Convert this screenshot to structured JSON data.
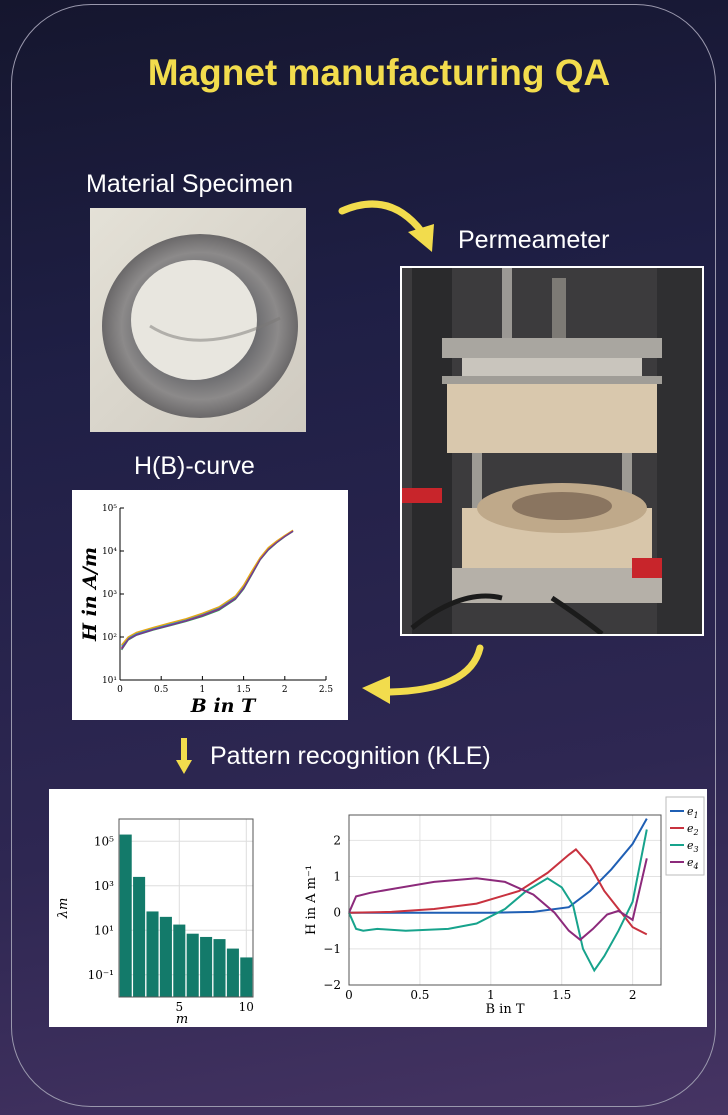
{
  "title": "Magnet manufacturing QA",
  "labels": {
    "specimen": "Material Specimen",
    "permeameter": "Permeameter",
    "hb_curve": "H(B)-curve",
    "pattern": "Pattern recognition (KLE)"
  },
  "colors": {
    "title": "#f2dc4d",
    "arrow": "#f2dc4d",
    "bar": "#137a6a"
  },
  "chart_data": [
    {
      "type": "line",
      "xlabel": "B in T",
      "ylabel": "H in A/m",
      "yscale": "log",
      "xlim": [
        0,
        2.5
      ],
      "ylim": [
        10,
        100000
      ],
      "xticks": [
        "0",
        "0.5",
        "1",
        "1.5",
        "2",
        "2.5"
      ],
      "yticks": [
        "10¹",
        "10²",
        "10³",
        "10⁴",
        "10⁵"
      ],
      "x": [
        0.02,
        0.1,
        0.2,
        0.4,
        0.6,
        0.8,
        1.0,
        1.2,
        1.4,
        1.5,
        1.6,
        1.7,
        1.8,
        1.9,
        2.0,
        2.1
      ],
      "series": [
        {
          "values": [
            55,
            90,
            115,
            150,
            190,
            240,
            320,
            450,
            800,
            1400,
            3000,
            6500,
            11000,
            16000,
            22000,
            29000
          ]
        },
        {
          "values": [
            60,
            95,
            120,
            158,
            198,
            255,
            340,
            480,
            850,
            1500,
            3200,
            6800,
            11500,
            16500,
            22500,
            30000
          ]
        },
        {
          "values": [
            50,
            85,
            110,
            145,
            182,
            230,
            300,
            420,
            750,
            1300,
            2800,
            6200,
            10500,
            15500,
            21500,
            28500
          ]
        },
        {
          "values": [
            65,
            100,
            128,
            165,
            210,
            265,
            355,
            500,
            900,
            1600,
            3400,
            7000,
            12000,
            17000,
            23000,
            30500
          ]
        },
        {
          "values": [
            52,
            88,
            112,
            148,
            186,
            236,
            310,
            435,
            770,
            1350,
            2900,
            6300,
            10800,
            15800,
            21800,
            29000
          ]
        }
      ],
      "series_colors": [
        "#d7301f",
        "#2b8cbe",
        "#31a354",
        "#e6a817",
        "#7b3294"
      ]
    },
    {
      "type": "bar",
      "ylabel": "λm",
      "xlabel": "m",
      "yscale": "log",
      "ylim": [
        0.01,
        1000000
      ],
      "xlim": [
        0.5,
        10.5
      ],
      "xticks": [
        "5",
        "10"
      ],
      "yticks": [
        "10⁵",
        "10³",
        "10¹",
        "10⁻¹"
      ],
      "categories": [
        1,
        2,
        3,
        4,
        5,
        6,
        7,
        8,
        9,
        10
      ],
      "values": [
        200000,
        2500,
        70,
        40,
        18,
        7,
        5,
        4,
        1.5,
        0.6
      ]
    },
    {
      "type": "line",
      "xlabel": "B in T",
      "ylabel": "H in A m⁻¹",
      "xlim": [
        0,
        2.2
      ],
      "ylim": [
        -2,
        2.7
      ],
      "xticks": [
        "0",
        "0.5",
        "1",
        "1.5",
        "2"
      ],
      "yticks": [
        "2",
        "1",
        "0",
        "−1",
        "−2"
      ],
      "legend": "right",
      "series": [
        {
          "name": "e1",
          "color": "#1f5fb4",
          "points": [
            [
              0,
              0
            ],
            [
              0.5,
              0
            ],
            [
              1.0,
              0
            ],
            [
              1.3,
              0.02
            ],
            [
              1.55,
              0.15
            ],
            [
              1.7,
              0.6
            ],
            [
              1.85,
              1.2
            ],
            [
              2.0,
              1.9
            ],
            [
              2.1,
              2.6
            ]
          ]
        },
        {
          "name": "e2",
          "color": "#c8323f",
          "points": [
            [
              0,
              0
            ],
            [
              0.3,
              0.02
            ],
            [
              0.6,
              0.1
            ],
            [
              0.9,
              0.25
            ],
            [
              1.2,
              0.6
            ],
            [
              1.4,
              1.1
            ],
            [
              1.55,
              1.6
            ],
            [
              1.6,
              1.75
            ],
            [
              1.7,
              1.3
            ],
            [
              1.8,
              0.6
            ],
            [
              1.9,
              0.1
            ],
            [
              2.0,
              -0.4
            ],
            [
              2.1,
              -0.6
            ]
          ]
        },
        {
          "name": "e3",
          "color": "#17a38c",
          "points": [
            [
              0,
              0
            ],
            [
              0.05,
              -0.45
            ],
            [
              0.1,
              -0.5
            ],
            [
              0.2,
              -0.45
            ],
            [
              0.4,
              -0.5
            ],
            [
              0.7,
              -0.45
            ],
            [
              0.9,
              -0.3
            ],
            [
              1.1,
              0.1
            ],
            [
              1.25,
              0.6
            ],
            [
              1.4,
              0.95
            ],
            [
              1.5,
              0.7
            ],
            [
              1.58,
              0.2
            ],
            [
              1.65,
              -1.0
            ],
            [
              1.73,
              -1.6
            ],
            [
              1.8,
              -1.2
            ],
            [
              1.9,
              -0.5
            ],
            [
              2.0,
              0.3
            ],
            [
              2.1,
              2.3
            ]
          ]
        },
        {
          "name": "e4",
          "color": "#8c2a7b",
          "points": [
            [
              0,
              0
            ],
            [
              0.05,
              0.45
            ],
            [
              0.15,
              0.55
            ],
            [
              0.3,
              0.65
            ],
            [
              0.6,
              0.85
            ],
            [
              0.9,
              0.95
            ],
            [
              1.1,
              0.85
            ],
            [
              1.3,
              0.5
            ],
            [
              1.45,
              0.0
            ],
            [
              1.55,
              -0.5
            ],
            [
              1.63,
              -0.75
            ],
            [
              1.72,
              -0.45
            ],
            [
              1.82,
              -0.05
            ],
            [
              1.9,
              0.05
            ],
            [
              2.0,
              -0.2
            ],
            [
              2.1,
              1.5
            ]
          ]
        }
      ]
    }
  ]
}
